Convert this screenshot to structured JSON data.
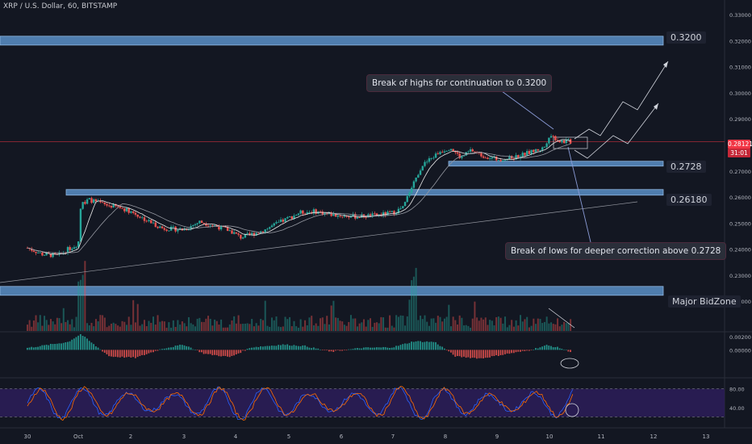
{
  "header": {
    "symbol": "XRP / U.S. Dollar, 60, BITSTAMP"
  },
  "price_tag": {
    "price": "0.28121",
    "countdown": "31:01"
  },
  "levels": {
    "l1": "0.3200",
    "l2": "0.2728",
    "l3": "0.26180",
    "l4": "Major BidZone"
  },
  "annotations": {
    "up": "Break of highs for continuation to 0.3200",
    "down": "Break of lows for deeper correction above 0.2728"
  },
  "colors": {
    "up": "#26a69a",
    "down": "#ef5350",
    "zone": "#5b8fc7",
    "rsi_bg": "#2b1d56",
    "rsi_line": "#5c6bc0"
  },
  "chart_data": [
    {
      "type": "candlestick",
      "title": "XRP / U.S. Dollar, 60, BITSTAMP",
      "x_ticks": [
        "30",
        "Oct",
        "2",
        "3",
        "4",
        "5",
        "6",
        "7",
        "8",
        "9",
        "10",
        "11",
        "12",
        "13"
      ],
      "y_ticks": [
        "0.33000",
        "0.32000",
        "0.31000",
        "0.30000",
        "0.29000",
        "0.28000",
        "0.27000",
        "0.26000",
        "0.25000",
        "0.24000",
        "0.23000",
        "0.22000"
      ],
      "ylim": [
        0.2148,
        0.3325
      ],
      "approx_close_path": [
        {
          "x": "30",
          "y": 0.2375
        },
        {
          "x": "Oct",
          "y": 0.2405
        },
        {
          "x": "Oct",
          "y": 0.258
        },
        {
          "x": "2",
          "y": 0.2555
        },
        {
          "x": "2",
          "y": 0.249
        },
        {
          "x": "3",
          "y": 0.247
        },
        {
          "x": "3",
          "y": 0.25
        },
        {
          "x": "4",
          "y": 0.2445
        },
        {
          "x": "5",
          "y": 0.252
        },
        {
          "x": "5",
          "y": 0.254
        },
        {
          "x": "6",
          "y": 0.2525
        },
        {
          "x": "7",
          "y": 0.253
        },
        {
          "x": "7",
          "y": 0.256
        },
        {
          "x": "7",
          "y": 0.272
        },
        {
          "x": "8",
          "y": 0.279
        },
        {
          "x": "8",
          "y": 0.277
        },
        {
          "x": "9",
          "y": 0.274
        },
        {
          "x": "9",
          "y": 0.276
        },
        {
          "x": "10",
          "y": 0.283
        },
        {
          "x": "10",
          "y": 0.2812
        }
      ],
      "last_price": 0.28121,
      "zones": [
        {
          "label": "0.3200",
          "value": 0.32
        },
        {
          "label": "0.2728",
          "value": 0.2728
        },
        {
          "label": "0.26180",
          "value": 0.2618
        },
        {
          "label": "Major BidZone",
          "value": 0.224
        }
      ]
    },
    {
      "type": "bar",
      "title": "oscillator",
      "y_ticks": [
        "0.00200",
        "0.00000"
      ],
      "ylim": [
        -0.004,
        0.0025
      ]
    },
    {
      "type": "line",
      "title": "stochastic RSI",
      "y_ticks": [
        "80.00",
        "40.00"
      ],
      "ylim": [
        0,
        100
      ]
    }
  ]
}
